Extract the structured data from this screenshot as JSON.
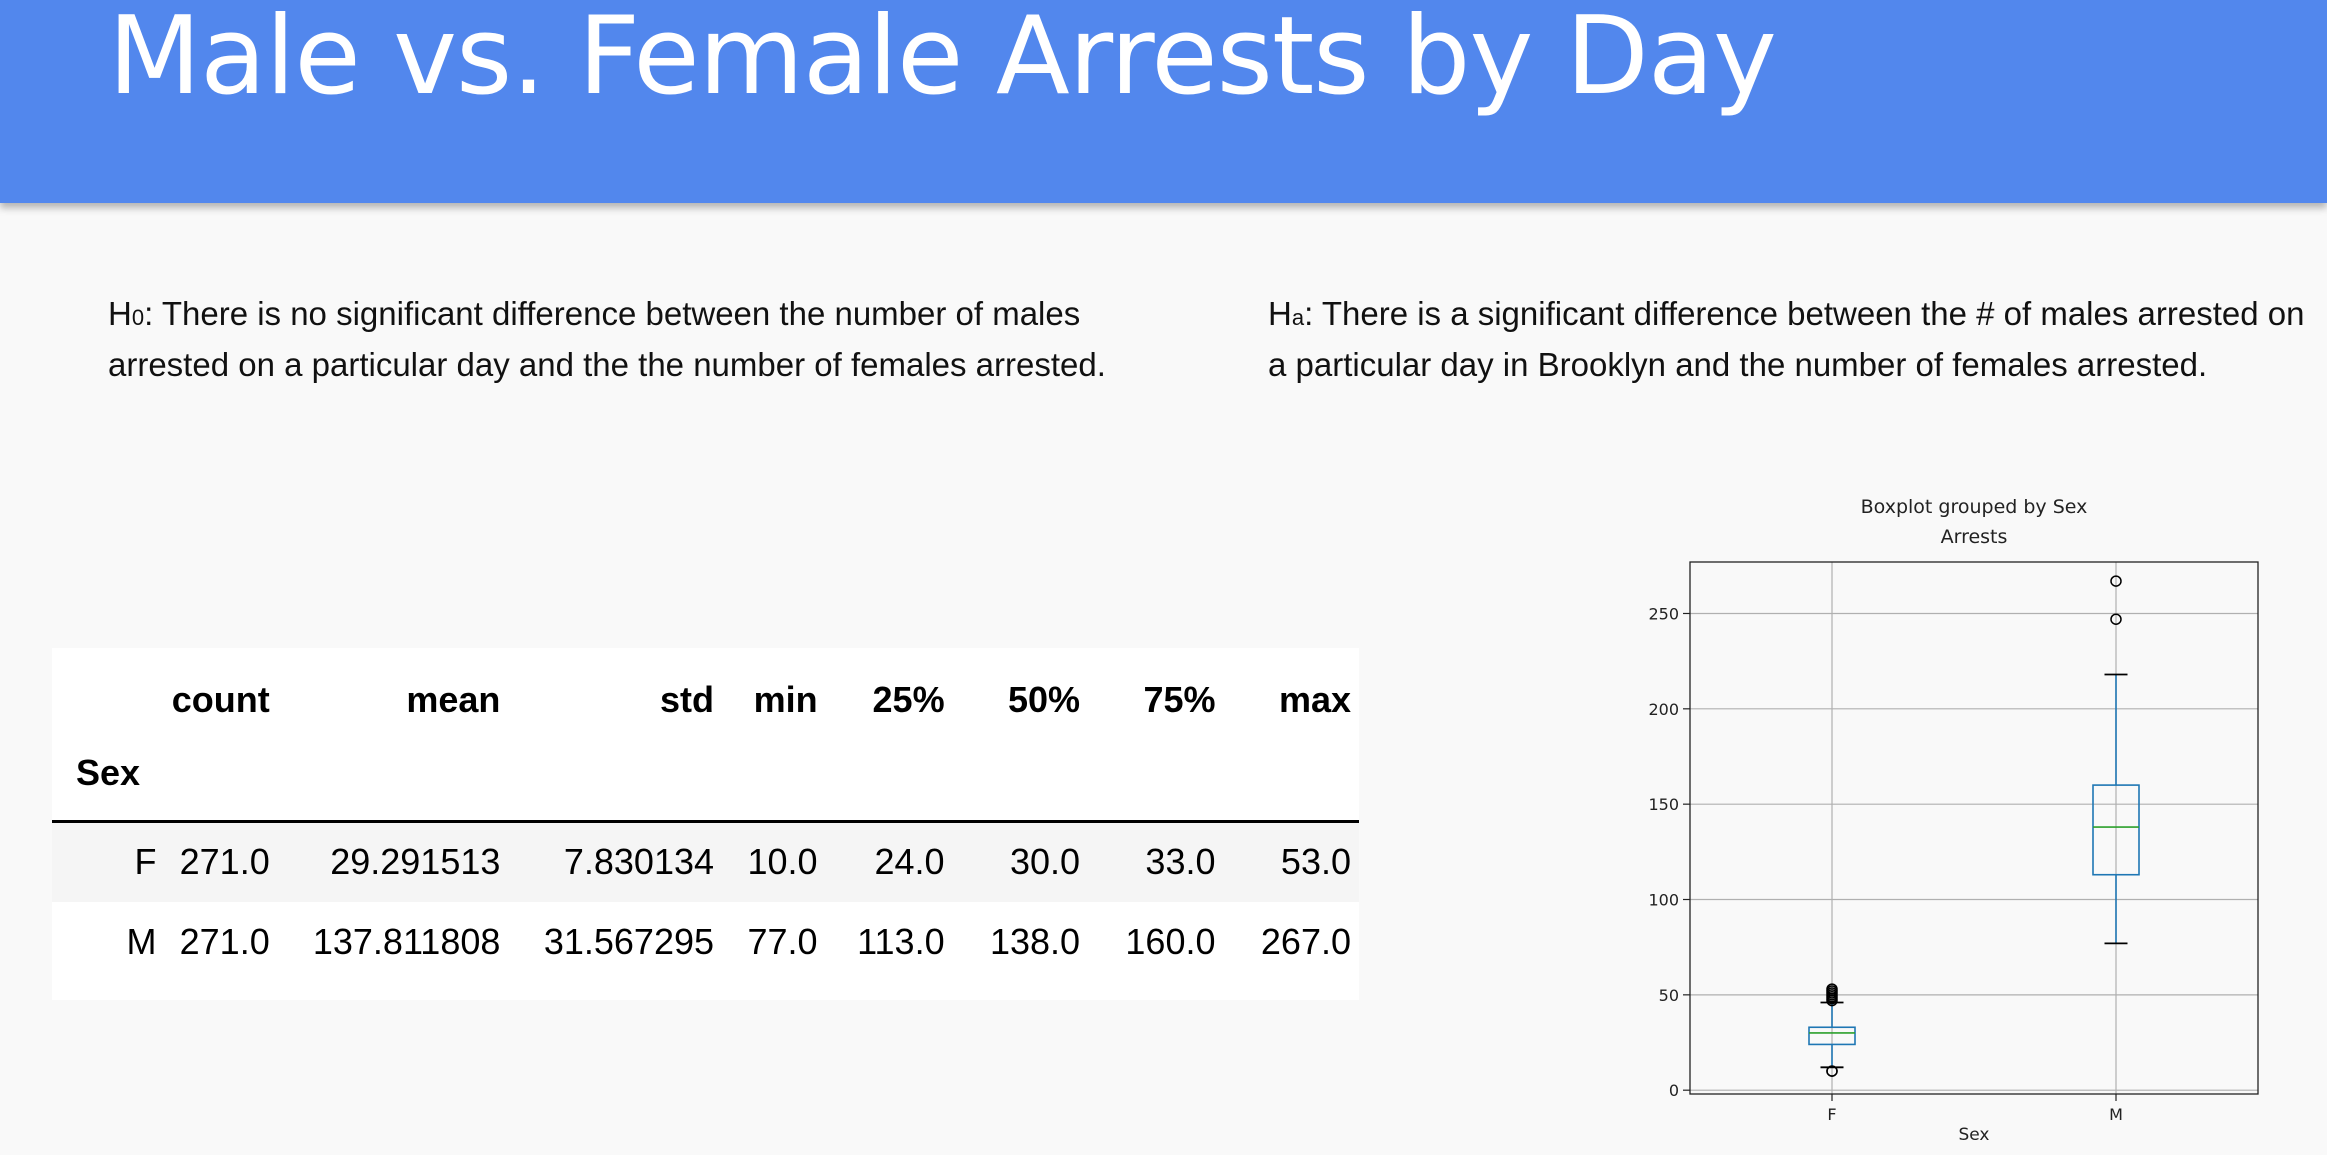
{
  "slide": {
    "title": "Male vs. Female Arrests by Day",
    "h0": {
      "prefix": "H",
      "sub": "0",
      "text": ": There is no significant difference between the number of males arrested on a particular day and the the number of females arrested."
    },
    "ha": {
      "prefix": "H",
      "sub": "a",
      "text": ": There is a significant difference between the # of males arrested on a particular day in Brooklyn and the number of females arrested."
    }
  },
  "stats_table": {
    "index_name": "Sex",
    "columns": [
      "count",
      "mean",
      "std",
      "min",
      "25%",
      "50%",
      "75%",
      "max"
    ],
    "rows": [
      {
        "label": "F",
        "values": [
          "271.0",
          "29.291513",
          "7.830134",
          "10.0",
          "24.0",
          "30.0",
          "33.0",
          "53.0"
        ]
      },
      {
        "label": "M",
        "values": [
          "271.0",
          "137.811808",
          "31.567295",
          "77.0",
          "113.0",
          "138.0",
          "160.0",
          "267.0"
        ]
      }
    ]
  },
  "chart_data": {
    "type": "boxplot",
    "title": "Boxplot grouped by Sex",
    "subtitle": "Arrests",
    "xlabel": "Sex",
    "ylabel": "",
    "ylim": [
      -2,
      277
    ],
    "yticks": [
      0,
      50,
      100,
      150,
      200,
      250
    ],
    "grid": true,
    "categories": [
      "F",
      "M"
    ],
    "boxes": [
      {
        "category": "F",
        "whisker_low": 12,
        "q1": 24,
        "median": 30,
        "q3": 33,
        "whisker_high": 46,
        "fliers": [
          10,
          10,
          47,
          48,
          49,
          50,
          51,
          52,
          53
        ]
      },
      {
        "category": "M",
        "whisker_low": 77,
        "q1": 113,
        "median": 138,
        "q3": 160,
        "whisker_high": 218,
        "fliers": [
          247,
          267
        ]
      }
    ],
    "colors": {
      "box": "#1f77b4",
      "median": "#2ca02c",
      "grid": "#b0b0b0"
    }
  }
}
